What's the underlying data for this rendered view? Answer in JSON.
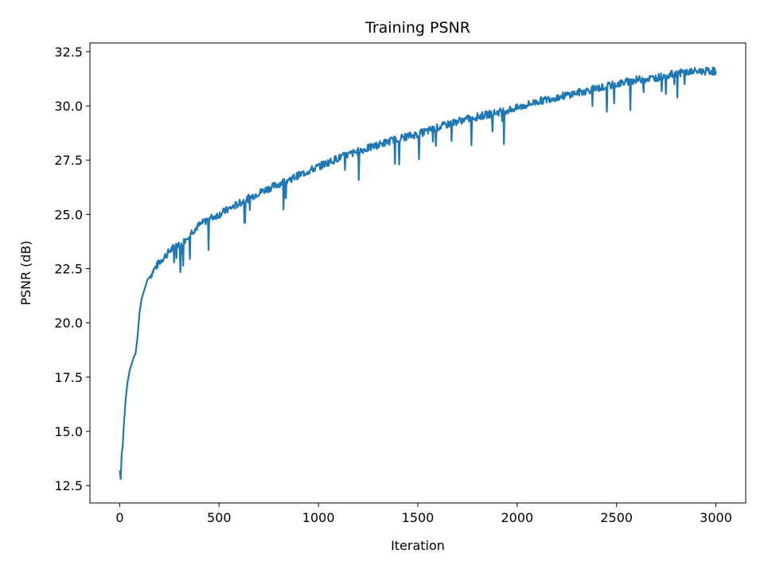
{
  "chart_data": {
    "type": "line",
    "title": "Training PSNR",
    "xlabel": "Iteration",
    "ylabel": "PSNR (dB)",
    "xlim": [
      -150,
      3150
    ],
    "ylim": [
      11.7,
      32.9
    ],
    "xticks": [
      0,
      500,
      1000,
      1500,
      2000,
      2500,
      3000
    ],
    "yticks": [
      12.5,
      15.0,
      17.5,
      20.0,
      22.5,
      25.0,
      27.5,
      30.0,
      32.5
    ],
    "xtick_labels": [
      "0",
      "500",
      "1000",
      "1500",
      "2000",
      "2500",
      "3000"
    ],
    "ytick_labels": [
      "12.5",
      "15.0",
      "17.5",
      "20.0",
      "22.5",
      "25.0",
      "27.5",
      "30.0",
      "32.5"
    ],
    "grid": false,
    "line_color": "#1f77b4",
    "series": [
      {
        "x": [
          0,
          5,
          10,
          15,
          20,
          30,
          40,
          50,
          60,
          70,
          80,
          90,
          100,
          110,
          120,
          130,
          140,
          150,
          175,
          200,
          250,
          300,
          305,
          310,
          350,
          400,
          450,
          500,
          600,
          700,
          800,
          900,
          1000,
          1100,
          1200,
          1300,
          1400,
          1500,
          1600,
          1700,
          1800,
          1900,
          2000,
          2100,
          2200,
          2300,
          2400,
          2500,
          2600,
          2700,
          2800,
          2900,
          3000
        ],
        "y": [
          13.2,
          12.8,
          14.0,
          14.3,
          15.2,
          16.5,
          17.3,
          17.8,
          18.1,
          18.4,
          18.6,
          19.4,
          20.5,
          21.1,
          21.4,
          21.7,
          22.0,
          22.1,
          22.5,
          22.8,
          23.3,
          23.7,
          22.5,
          23.6,
          24.1,
          24.5,
          24.8,
          25.0,
          25.5,
          26.0,
          26.4,
          26.8,
          27.2,
          27.6,
          27.9,
          28.2,
          28.5,
          28.7,
          29.0,
          29.3,
          29.5,
          29.7,
          29.9,
          30.2,
          30.4,
          30.6,
          30.8,
          31.0,
          31.2,
          31.3,
          31.5,
          31.6,
          31.6
        ]
      }
    ]
  }
}
